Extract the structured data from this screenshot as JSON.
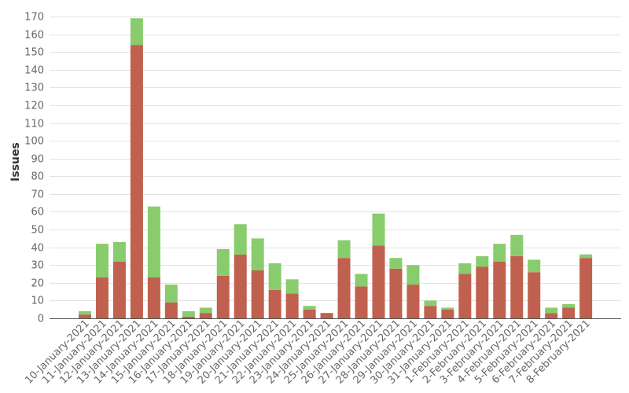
{
  "chart_data": {
    "type": "bar",
    "stacked": true,
    "ylabel": "Issues",
    "xlabel": "",
    "ylim": [
      0,
      170
    ],
    "ytick_step": 10,
    "grid": true,
    "categories": [
      "10-January-2021",
      "11-January-2021",
      "12-January-2021",
      "13-January-2021",
      "14-January-2021",
      "15-January-2021",
      "16-January-2021",
      "17-January-2021",
      "18-January-2021",
      "19-January-2021",
      "20-January-2021",
      "21-January-2021",
      "22-January-2021",
      "23-January-2021",
      "24-January-2021",
      "25-January-2021",
      "26-January-2021",
      "27-January-2021",
      "28-January-2021",
      "29-January-2021",
      "30-January-2021",
      "31-January-2021",
      "1-February-2021",
      "2-February-2021",
      "3-February-2021",
      "4-February-2021",
      "5-February-2021",
      "6-February-2021",
      "7-February-2021",
      "8-February-2021"
    ],
    "series": [
      {
        "color": "#c0604f",
        "values": [
          2,
          23,
          32,
          154,
          23,
          9,
          1,
          3,
          24,
          36,
          27,
          16,
          14,
          5,
          3,
          34,
          18,
          41,
          28,
          19,
          7,
          5,
          25,
          29,
          32,
          35,
          26,
          3,
          6,
          34
        ]
      },
      {
        "color": "#88cc6e",
        "values": [
          2,
          19,
          11,
          15,
          40,
          10,
          3,
          3,
          15,
          17,
          18,
          15,
          8,
          2,
          0,
          10,
          7,
          18,
          6,
          11,
          3,
          1,
          6,
          6,
          10,
          12,
          7,
          3,
          2,
          2
        ]
      }
    ]
  }
}
